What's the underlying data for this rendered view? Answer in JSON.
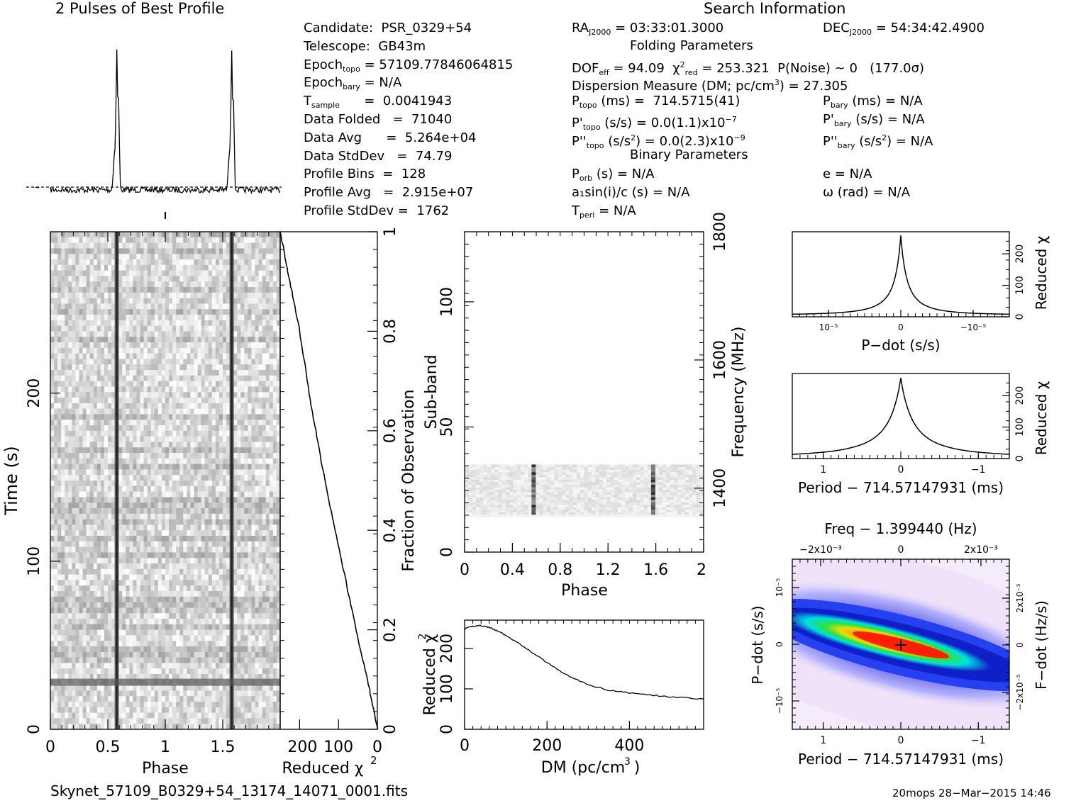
{
  "header": {
    "profile_title": "2 Pulses of Best Profile",
    "search_title": "Search Information",
    "folding_title": "Folding Parameters",
    "binary_title": "Binary Parameters"
  },
  "info": {
    "col1": [
      "Candidate:  PSR_0329+54",
      "Telescope:  GB43m",
      "Epoch_topo = 57109.77846064815",
      "Epoch_bary = N/A",
      "T_sample      =  0.0041943",
      "Data Folded   =  71040",
      "Data Avg      =  5.264e+04",
      "Data StdDev   =  74.79",
      "Profile Bins  =  128",
      "Profile Avg   =  2.915e+07",
      "Profile StdDev =  1762"
    ],
    "col2": [
      "RA_J2000 = 03:33:01.3000",
      "DOF_eff = 94.09  χ²_red = 253.321  P(Noise) ~ 0   (177.0σ)",
      "Dispersion Measure (DM; pc/cm³) = 27.305",
      "P_topo (ms) =  714.5715(41)",
      "P'_topo (s/s) = 0.0(1.1)x10⁻⁷",
      "P''_topo (s/s²) = 0.0(2.3)x10⁻⁹",
      "P_orb (s) = N/A",
      "a₁sin(i)/c (s) = N/A",
      "T_peri = N/A"
    ],
    "col3": [
      "DEC_J2000 = 54:34:42.4900",
      "P_bary (ms) = N/A",
      "P'_bary (s/s) = N/A",
      "P''_bary (s/s²) = N/A",
      "e = N/A",
      "ω (rad) = N/A"
    ]
  },
  "footer": {
    "filename": "Skynet_57109_B0329+54_13174_14071_0001.fits",
    "stamp": "20mops 28−Mar−2015 14:46"
  },
  "chart_data": [
    {
      "type": "line",
      "panel": "profile",
      "title": "2 Pulses of Best Profile",
      "xlim": [
        0,
        2
      ],
      "peaks": [
        {
          "x": 0.578,
          "height": 1.0
        },
        {
          "x": 1.578,
          "height": 1.0
        }
      ],
      "baseline": 0.0
    },
    {
      "type": "heatmap",
      "panel": "time-phase",
      "xlabel": "Phase",
      "ylabel": "Time (s)",
      "xlim": [
        0,
        2
      ],
      "ylim": [
        0,
        296
      ],
      "xticks": [
        "0",
        "0.5",
        "1",
        "1.5"
      ],
      "yticks": [
        "0",
        "100",
        "200"
      ],
      "pulse_phases": [
        0.578,
        1.578
      ],
      "bright_row_time": 28
    },
    {
      "type": "line",
      "panel": "reduced-chi2-vs-time",
      "xlabel": "Reduced χ²",
      "ylabel": "Fraction of Observation",
      "xlim": [
        250,
        0
      ],
      "ylim": [
        0,
        1
      ],
      "xticks": [
        "200",
        "100",
        "0"
      ],
      "yticks": [
        "0",
        "0.2",
        "0.4",
        "0.6",
        "0.8",
        "1"
      ],
      "points": [
        [
          0,
          0
        ],
        [
          20,
          0.08
        ],
        [
          55,
          0.2
        ],
        [
          95,
          0.35
        ],
        [
          135,
          0.5
        ],
        [
          170,
          0.65
        ],
        [
          200,
          0.8
        ],
        [
          230,
          0.92
        ],
        [
          250,
          1.0
        ]
      ]
    },
    {
      "type": "heatmap",
      "panel": "subband-phase",
      "xlabel": "Phase",
      "ylabel": "Sub-band",
      "y2label": "Frequency (MHz)",
      "xlim": [
        0,
        2
      ],
      "ylim": [
        0,
        128
      ],
      "xticks": [
        "0",
        "0.4",
        "0.8",
        "1.2",
        "1.6",
        "2"
      ],
      "yticks": [
        "0",
        "50",
        "100"
      ],
      "y2ticks": [
        "1400",
        "1600",
        "1800"
      ],
      "active_subbands": [
        15,
        35
      ],
      "pulse_phases": [
        0.578,
        1.578
      ]
    },
    {
      "type": "line",
      "panel": "dm-curve",
      "xlabel": "DM (pc/cm³)",
      "ylabel": "Reduced χ²",
      "xlim": [
        0,
        580
      ],
      "ylim": [
        0,
        270
      ],
      "xticks": [
        "0",
        "200",
        "400"
      ],
      "yticks": [
        "0",
        "100",
        "200"
      ],
      "x": [
        0,
        20,
        40,
        60,
        80,
        100,
        150,
        200,
        250,
        300,
        350,
        400,
        450,
        500,
        580
      ],
      "y": [
        248,
        255,
        257,
        252,
        243,
        232,
        200,
        165,
        133,
        110,
        97,
        90,
        85,
        80,
        75
      ]
    },
    {
      "type": "line",
      "panel": "pdot-curve",
      "xlabel": "P−dot (s/s)",
      "ylabel": "Reduced χ²",
      "xlim": [
        1.5e-05,
        -1.5e-05
      ],
      "ylim": [
        0,
        270
      ],
      "xticks": [
        "10⁻⁵",
        "0",
        "−10⁻⁵"
      ],
      "yticks": [
        "0",
        "100",
        "200"
      ],
      "x": [
        1.5e-05,
        1e-05,
        5e-06,
        2e-06,
        1e-06,
        0,
        -1e-06,
        -2e-06,
        -5e-06,
        -1e-05,
        -1.5e-05
      ],
      "y": [
        8,
        22,
        62,
        120,
        160,
        253,
        160,
        120,
        62,
        22,
        8
      ]
    },
    {
      "type": "line",
      "panel": "period-curve",
      "xlabel": "Period − 714.57147931 (ms)",
      "ylabel": "Reduced χ²",
      "xlim": [
        1.4,
        -1.4
      ],
      "ylim": [
        0,
        270
      ],
      "xticks": [
        "1",
        "0",
        "−1"
      ],
      "yticks": [
        "0",
        "100",
        "200"
      ],
      "x": [
        1.4,
        1.0,
        0.6,
        0.3,
        0.15,
        0,
        -0.15,
        -0.3,
        -0.6,
        -1.0,
        -1.4
      ],
      "y": [
        10,
        28,
        70,
        135,
        190,
        253,
        190,
        135,
        70,
        28,
        10
      ]
    },
    {
      "type": "heatmap",
      "panel": "p-pdot-plane",
      "title": "Freq − 1.399440 (Hz)",
      "xlabel": "Period − 714.57147931 (ms)",
      "ylabel": "P−dot (s/s)",
      "y2label": "F−dot (Hz/s)",
      "xlim": [
        1.4,
        -1.4
      ],
      "ylim": [
        1.5e-05,
        -1.5e-05
      ],
      "xticks": [
        "1",
        "0",
        "−1"
      ],
      "yticks": [
        "−10⁻⁵",
        "0",
        "10⁻⁵"
      ],
      "x2ticks": [
        "−2x10⁻³",
        "0",
        "2x10⁻³"
      ],
      "y2ticks": [
        "2x10⁻⁵",
        "0",
        "−2x10⁻⁵"
      ],
      "best": {
        "x": 0,
        "y": 0
      }
    }
  ]
}
